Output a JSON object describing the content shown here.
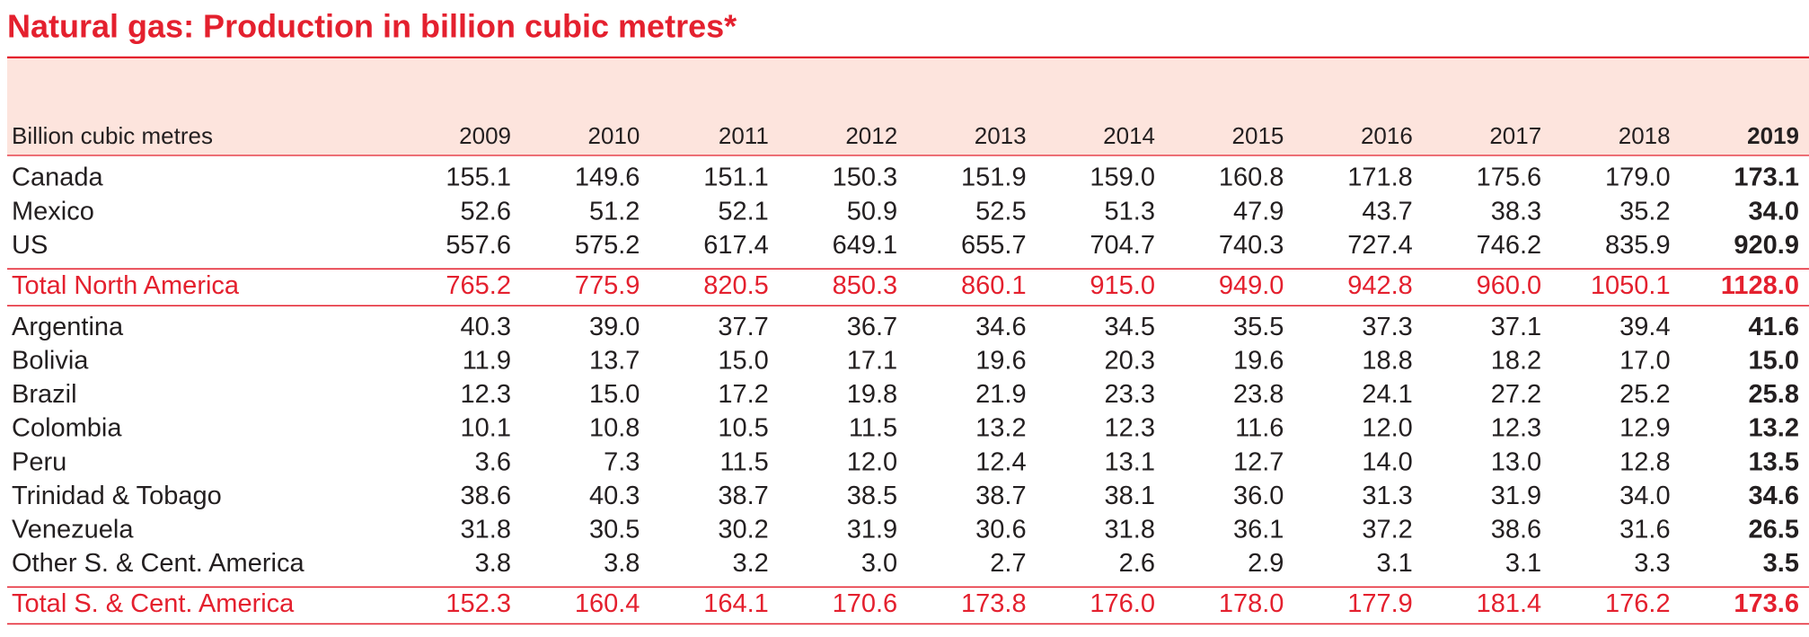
{
  "title": "Natural gas: Production in billion cubic metres*",
  "table": {
    "header": [
      "Billion cubic metres",
      "2009",
      "2010",
      "2011",
      "2012",
      "2013",
      "2014",
      "2015",
      "2016",
      "2017",
      "2018",
      "2019"
    ],
    "sections": [
      {
        "rows": [
          [
            "Canada",
            "155.1",
            "149.6",
            "151.1",
            "150.3",
            "151.9",
            "159.0",
            "160.8",
            "171.8",
            "175.6",
            "179.0",
            "173.1"
          ],
          [
            "Mexico",
            "52.6",
            "51.2",
            "52.1",
            "50.9",
            "52.5",
            "51.3",
            "47.9",
            "43.7",
            "38.3",
            "35.2",
            "34.0"
          ],
          [
            "US",
            "557.6",
            "575.2",
            "617.4",
            "649.1",
            "655.7",
            "704.7",
            "740.3",
            "727.4",
            "746.2",
            "835.9",
            "920.9"
          ]
        ],
        "total": [
          "Total North America",
          "765.2",
          "775.9",
          "820.5",
          "850.3",
          "860.1",
          "915.0",
          "949.0",
          "942.8",
          "960.0",
          "1050.1",
          "1128.0"
        ]
      },
      {
        "rows": [
          [
            "Argentina",
            "40.3",
            "39.0",
            "37.7",
            "36.7",
            "34.6",
            "34.5",
            "35.5",
            "37.3",
            "37.1",
            "39.4",
            "41.6"
          ],
          [
            "Bolivia",
            "11.9",
            "13.7",
            "15.0",
            "17.1",
            "19.6",
            "20.3",
            "19.6",
            "18.8",
            "18.2",
            "17.0",
            "15.0"
          ],
          [
            "Brazil",
            "12.3",
            "15.0",
            "17.2",
            "19.8",
            "21.9",
            "23.3",
            "23.8",
            "24.1",
            "27.2",
            "25.2",
            "25.8"
          ],
          [
            "Colombia",
            "10.1",
            "10.8",
            "10.5",
            "11.5",
            "13.2",
            "12.3",
            "11.6",
            "12.0",
            "12.3",
            "12.9",
            "13.2"
          ],
          [
            "Peru",
            "3.6",
            "7.3",
            "11.5",
            "12.0",
            "12.4",
            "13.1",
            "12.7",
            "14.0",
            "13.0",
            "12.8",
            "13.5"
          ],
          [
            "Trinidad & Tobago",
            "38.6",
            "40.3",
            "38.7",
            "38.5",
            "38.7",
            "38.1",
            "36.0",
            "31.3",
            "31.9",
            "34.0",
            "34.6"
          ],
          [
            "Venezuela",
            "31.8",
            "30.5",
            "30.2",
            "31.9",
            "30.6",
            "31.8",
            "36.1",
            "37.2",
            "38.6",
            "31.6",
            "26.5"
          ],
          [
            "Other S. & Cent. America",
            "3.8",
            "3.8",
            "3.2",
            "3.0",
            "2.7",
            "2.6",
            "2.9",
            "3.1",
            "3.1",
            "3.3",
            "3.5"
          ]
        ],
        "total": [
          "Total S. & Cent. America",
          "152.3",
          "160.4",
          "164.1",
          "170.6",
          "173.8",
          "176.0",
          "178.0",
          "177.9",
          "181.4",
          "176.2",
          "173.6"
        ]
      }
    ]
  }
}
